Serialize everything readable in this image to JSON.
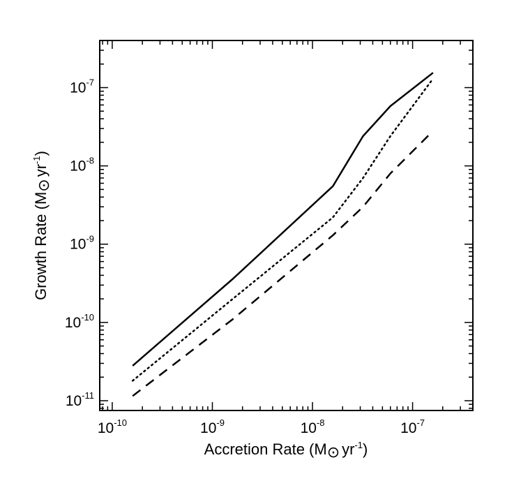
{
  "chart_data": {
    "type": "line",
    "scale": {
      "x": "log",
      "y": "log"
    },
    "xlabel": {
      "prefix": "Accretion Rate (M",
      "suffix": "yr",
      "exp": "-1",
      "close": ")"
    },
    "ylabel": {
      "prefix": "Growth Rate (M",
      "suffix": "yr",
      "exp": "-1",
      "close": ")"
    },
    "xlim": [
      7.5e-11,
      4e-07
    ],
    "ylim": [
      7.5e-12,
      4e-07
    ],
    "x_ticks": [
      {
        "value": 1e-10,
        "base": "10",
        "exp": "-10"
      },
      {
        "value": 1e-09,
        "base": "10",
        "exp": "-9"
      },
      {
        "value": 1e-08,
        "base": "10",
        "exp": "-8"
      },
      {
        "value": 1e-07,
        "base": "10",
        "exp": "-7"
      }
    ],
    "y_ticks": [
      {
        "value": 1e-11,
        "base": "10",
        "exp": "-11"
      },
      {
        "value": 1e-10,
        "base": "10",
        "exp": "-10"
      },
      {
        "value": 1e-09,
        "base": "10",
        "exp": "-9"
      },
      {
        "value": 1e-08,
        "base": "10",
        "exp": "-8"
      },
      {
        "value": 1e-07,
        "base": "10",
        "exp": "-7"
      }
    ],
    "series": [
      {
        "name": "solid",
        "style": "solid",
        "x": [
          1.6e-10,
          1.6e-09,
          1.6e-08,
          3.2e-08,
          6e-08,
          1.6e-07
        ],
        "y": [
          2.8e-11,
          3.6e-10,
          5.5e-09,
          2.4e-08,
          5.8e-08,
          1.55e-07
        ]
      },
      {
        "name": "dotted",
        "style": "dotted",
        "x": [
          1.6e-10,
          1.6e-09,
          1.6e-08,
          3.2e-08,
          6e-08,
          1.6e-07
        ],
        "y": [
          1.8e-11,
          2e-10,
          2.2e-09,
          7e-09,
          2.4e-08,
          1.3e-07
        ]
      },
      {
        "name": "dashed",
        "style": "dashed",
        "x": [
          1.6e-10,
          1.6e-09,
          1.6e-08,
          3.2e-08,
          6e-08,
          1.6e-07
        ],
        "y": [
          1.15e-11,
          1.1e-10,
          1.3e-09,
          3e-09,
          8e-09,
          2.8e-08
        ]
      }
    ]
  }
}
